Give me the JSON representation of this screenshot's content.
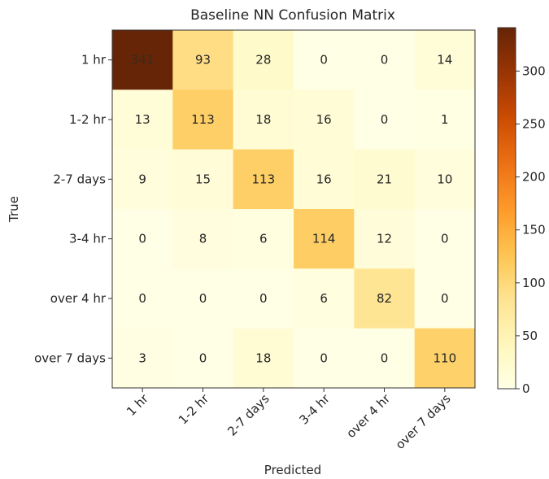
{
  "chart_data": {
    "type": "heatmap",
    "title": "Baseline NN Confusion Matrix",
    "xlabel": "Predicted",
    "ylabel": "True",
    "x_categories": [
      "1 hr",
      "1-2 hr",
      "2-7 days",
      "3-4 hr",
      "over 4 hr",
      "over 7 days"
    ],
    "y_categories": [
      "1 hr",
      "1-2 hr",
      "2-7 days",
      "3-4 hr",
      "over 4 hr",
      "over 7 days"
    ],
    "values": [
      [
        341,
        93,
        28,
        0,
        0,
        14
      ],
      [
        13,
        113,
        18,
        16,
        0,
        1
      ],
      [
        9,
        15,
        113,
        16,
        21,
        10
      ],
      [
        0,
        8,
        6,
        114,
        12,
        0
      ],
      [
        0,
        0,
        0,
        6,
        82,
        0
      ],
      [
        3,
        0,
        18,
        0,
        0,
        110
      ]
    ],
    "colormap": "YlOrBr",
    "color_range": [
      0,
      341
    ],
    "colorbar_ticks": [
      0,
      50,
      100,
      150,
      200,
      250,
      300
    ]
  }
}
